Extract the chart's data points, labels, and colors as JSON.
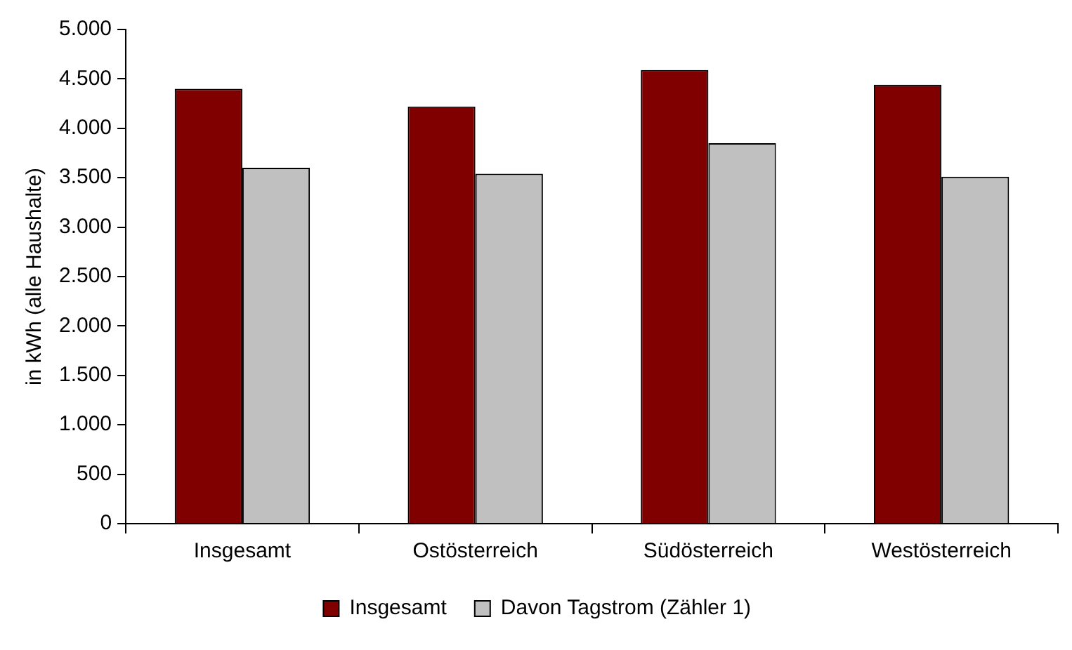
{
  "chart_data": {
    "type": "bar",
    "ylabel": "in kWh (alle Haushalte)",
    "categories": [
      "Insgesamt",
      "Ostösterreich",
      "Südösterreich",
      "Westösterreich"
    ],
    "series": [
      {
        "name": "Insgesamt",
        "color": "#800000",
        "values": [
          4400,
          4220,
          4590,
          4440
        ]
      },
      {
        "name": "Davon Tagstrom (Zähler 1)",
        "color": "#c0c0c0",
        "values": [
          3600,
          3540,
          3850,
          3510
        ]
      }
    ],
    "ylim": [
      0,
      5000
    ],
    "yticks": [
      0,
      500,
      {
        "value": 1000,
        "label": "1.000"
      },
      {
        "value": 1500,
        "label": "1.500"
      },
      {
        "value": 2000,
        "label": "2.000"
      },
      {
        "value": 2500,
        "label": "2.500"
      },
      {
        "value": 3000,
        "label": "3.000"
      },
      {
        "value": 3500,
        "label": "3.500"
      },
      {
        "value": 4000,
        "label": "4.000"
      },
      {
        "value": 4500,
        "label": "4.500"
      },
      {
        "value": 5000,
        "label": "5.000"
      }
    ],
    "grid": false,
    "legend": "bottom"
  }
}
